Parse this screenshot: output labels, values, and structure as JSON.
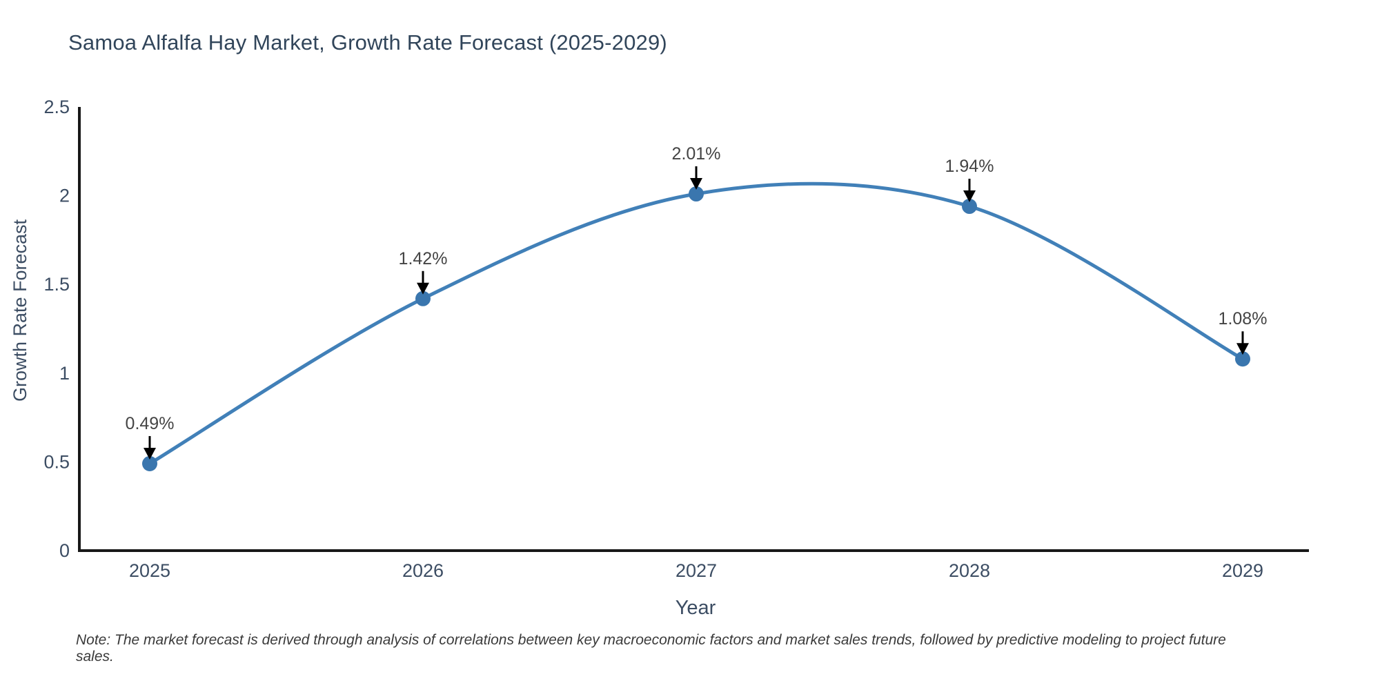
{
  "page": {
    "note": "Note: The market forecast is derived through analysis of correlations between key macroeconomic factors and market sales trends, followed by predictive modeling to project future sales."
  },
  "chart_data": {
    "type": "line",
    "title": "Samoa Alfalfa Hay Market, Growth Rate Forecast (2025-2029)",
    "xlabel": "Year",
    "ylabel": "Growth Rate Forecast",
    "categories": [
      "2025",
      "2026",
      "2027",
      "2028",
      "2029"
    ],
    "values": [
      0.49,
      1.42,
      2.01,
      1.94,
      1.08
    ],
    "point_labels": [
      "0.49%",
      "1.42%",
      "2.01%",
      "1.94%",
      "1.08%"
    ],
    "yticks": [
      "0",
      "0.5",
      "1",
      "1.5",
      "2",
      "2.5"
    ],
    "ytick_values": [
      0,
      0.5,
      1,
      1.5,
      2,
      2.5
    ],
    "ylim": [
      0,
      2.5
    ],
    "line_shape": "spline",
    "grid": false,
    "legend": false,
    "colors": {
      "line": "#4180b8",
      "marker": "#3a76ae",
      "axis_line": "#181818",
      "tick_label": "#3c4d63",
      "axis_title": "#3c4d63",
      "chart_title": "#31455a",
      "annotation_text": "#444444",
      "annotation_arrow": "#000000"
    }
  }
}
